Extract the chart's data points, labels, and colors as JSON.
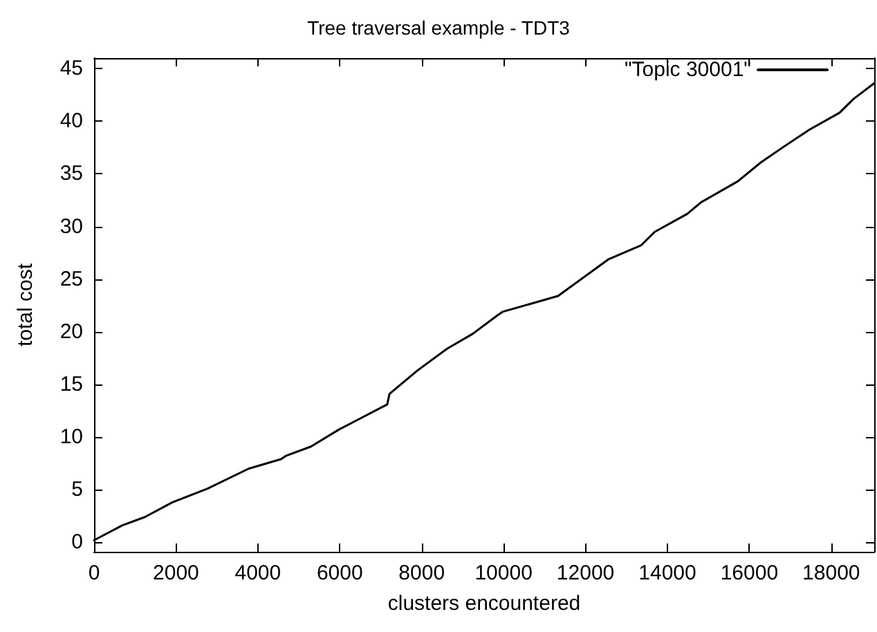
{
  "chart_data": {
    "type": "line",
    "title": "Tree traversal example - TDT3",
    "xlabel": "clusters encountered",
    "ylabel": "total cost",
    "xlim": [
      0,
      19050
    ],
    "ylim": [
      -0.9,
      46
    ],
    "xticks": [
      0,
      2000,
      4000,
      6000,
      8000,
      10000,
      12000,
      14000,
      16000,
      18000
    ],
    "yticks": [
      0,
      5,
      10,
      15,
      20,
      25,
      30,
      35,
      40,
      45
    ],
    "grid": false,
    "legend": "top right",
    "marker": "none",
    "line_style": "solid",
    "series": [
      {
        "name": "\"Topic 30001\"",
        "color": "#000000",
        "x": [
          0,
          686,
          1240,
          1916,
          2772,
          3777,
          4565,
          4678,
          5298,
          5974,
          7158,
          7214,
          7890,
          8622,
          9243,
          9862,
          9976,
          11330,
          12566,
          13354,
          13692,
          14483,
          14821,
          15721,
          16285,
          16849,
          17468,
          18201,
          18539,
          19047
        ],
        "values": [
          0.2,
          1.6,
          2.4,
          3.8,
          5.1,
          7.0,
          7.9,
          8.2,
          9.1,
          10.7,
          13.1,
          14.1,
          16.3,
          18.4,
          19.8,
          21.6,
          21.9,
          23.4,
          26.9,
          28.2,
          29.5,
          31.2,
          32.3,
          34.3,
          36.1,
          37.6,
          39.2,
          40.8,
          42.1,
          43.6
        ]
      }
    ]
  }
}
